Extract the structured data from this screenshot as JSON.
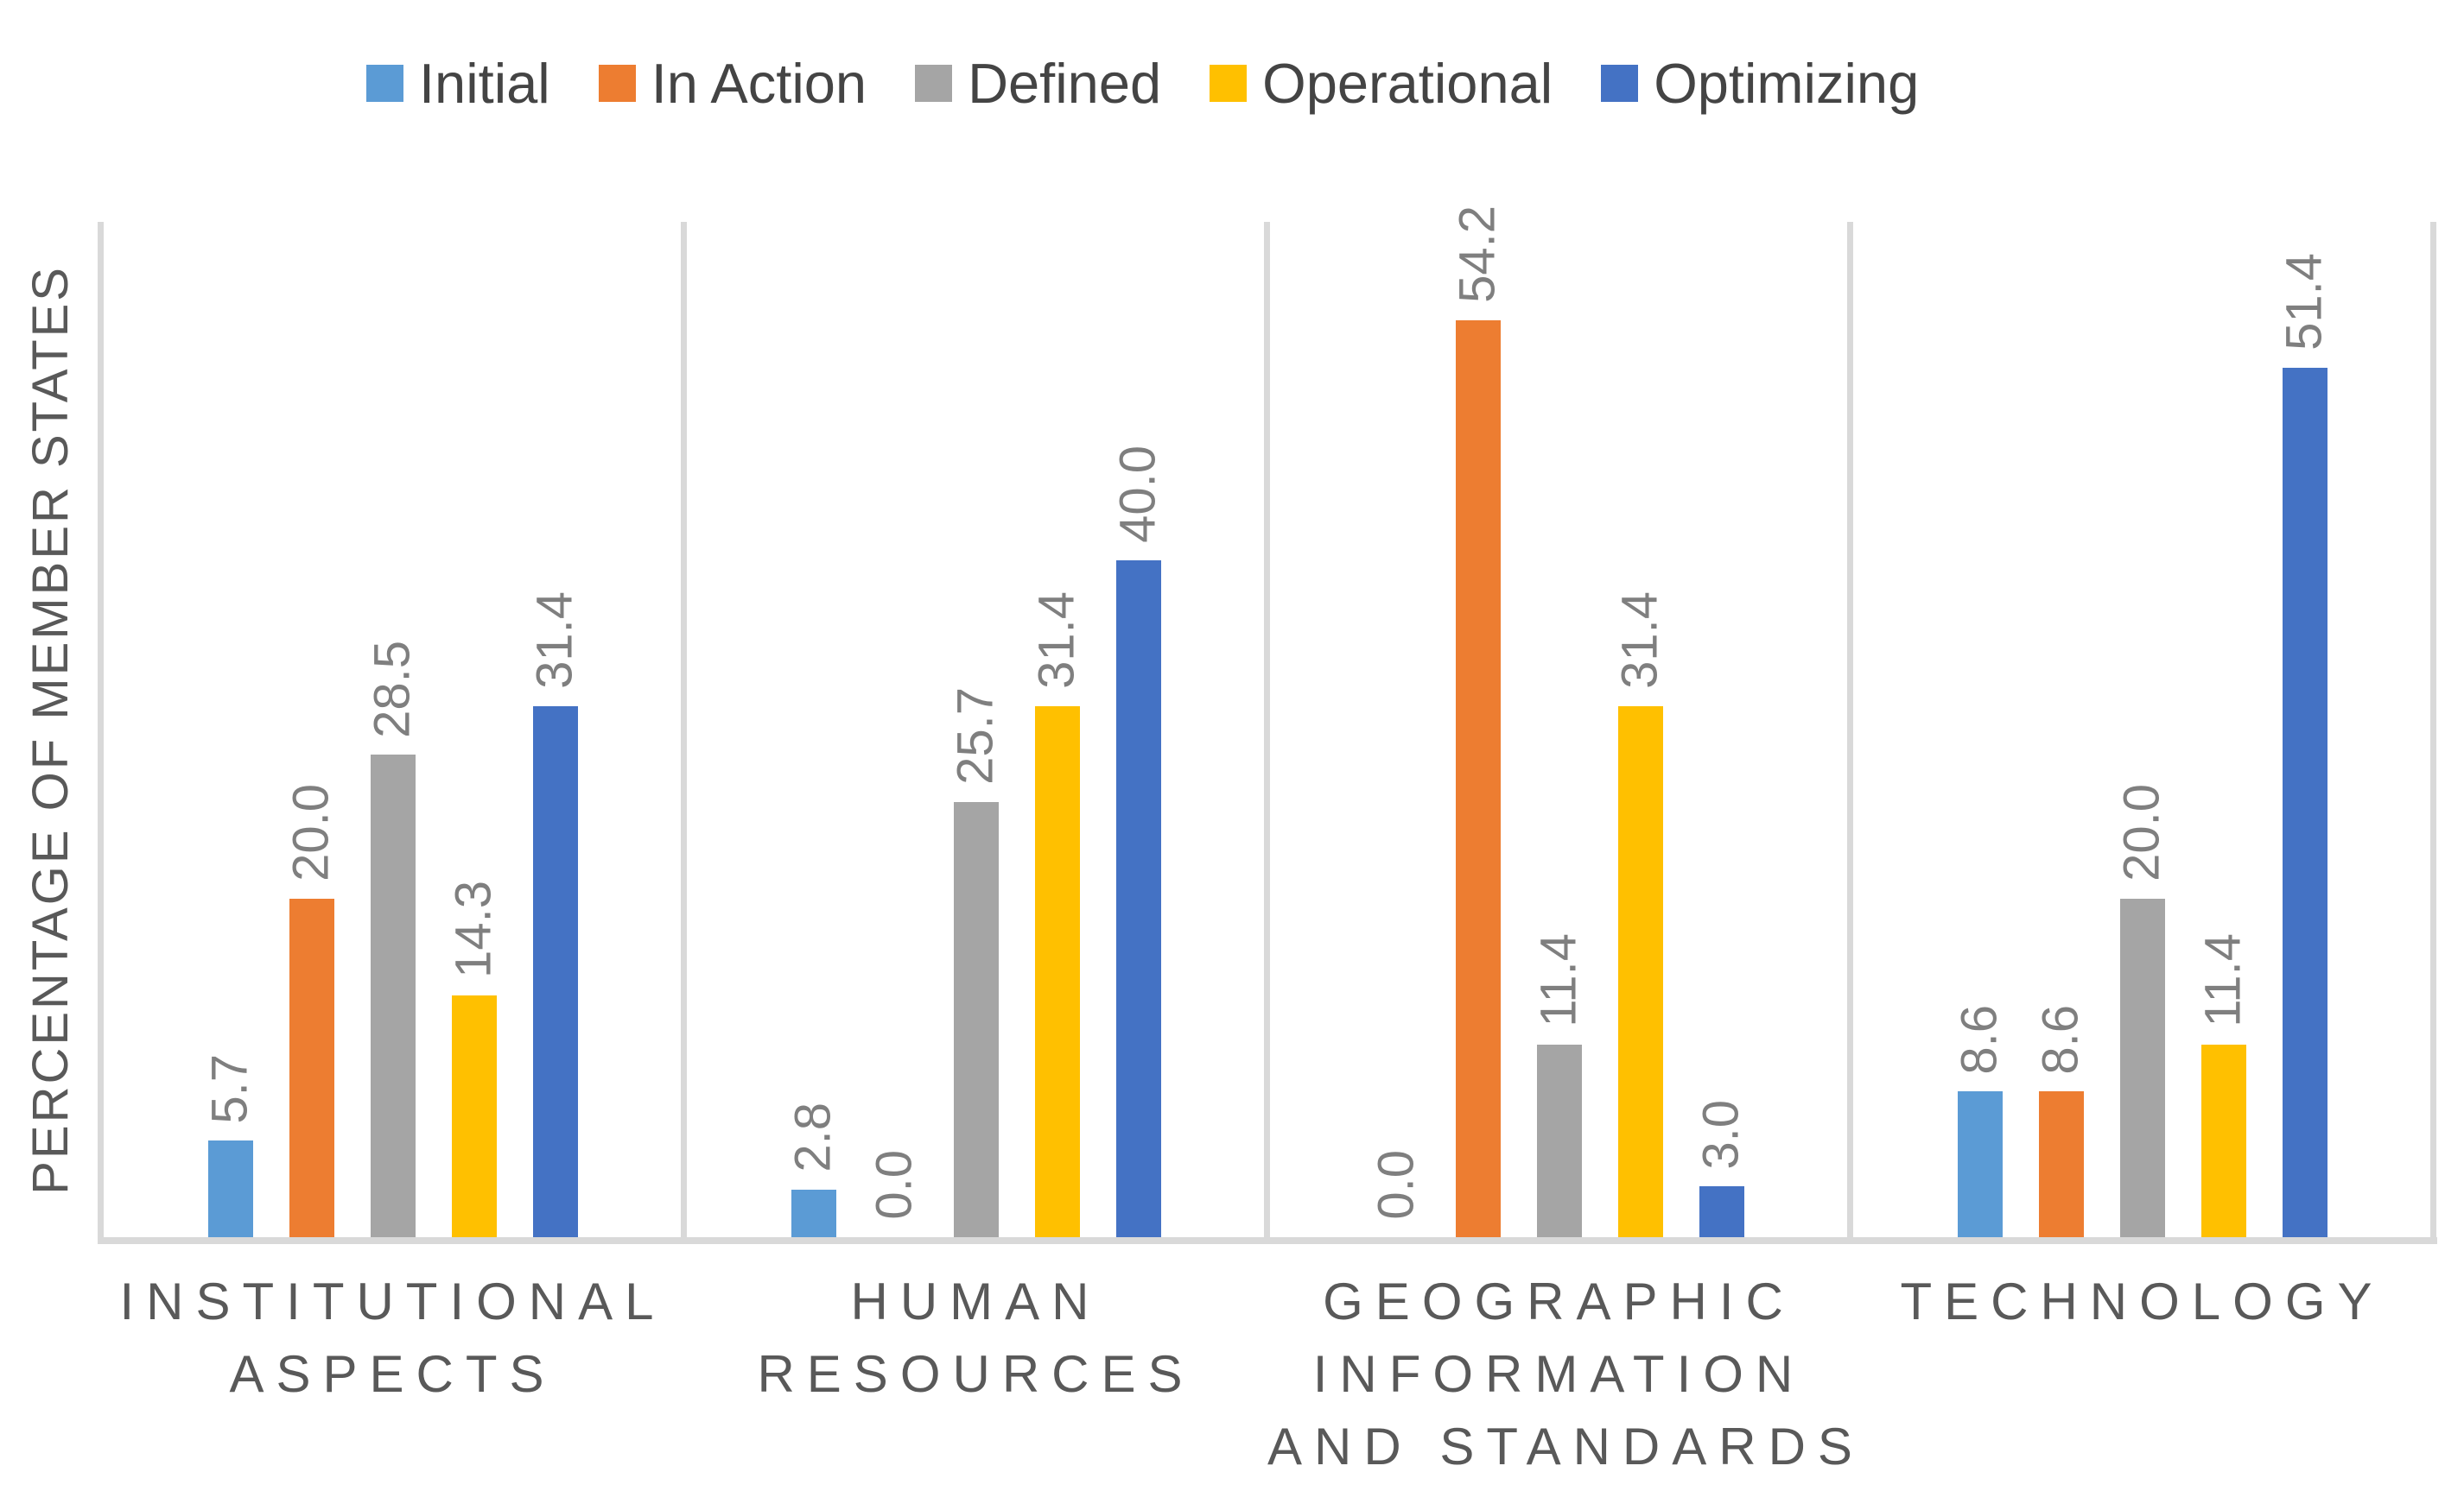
{
  "chart_data": {
    "type": "bar",
    "title": "",
    "ylabel": "PERCENTAGE OF MEMBER STATES",
    "ylim": [
      0,
      60
    ],
    "grid": "vertical-category-separators",
    "legend_position": "top",
    "value_labels": "rotated-90-above-bars",
    "value_label_decimals": 1,
    "categories": [
      "INSTITUTIONAL ASPECTS",
      "HUMAN RESOURCES",
      "GEOGRAPHIC INFORMATION AND STANDARDS",
      "TECHNOLOGY"
    ],
    "category_label_lines": [
      [
        "INSTITUTIONAL",
        "ASPECTS"
      ],
      [
        "HUMAN",
        "RESOURCES"
      ],
      [
        "GEOGRAPHIC",
        "INFORMATION",
        "AND STANDARDS"
      ],
      [
        "TECHNOLOGY"
      ]
    ],
    "series": [
      {
        "name": "Initial",
        "color": "#5B9BD5",
        "values": [
          5.7,
          2.8,
          0.0,
          8.6
        ]
      },
      {
        "name": "In Action",
        "color": "#ED7D31",
        "values": [
          20.0,
          0.0,
          54.2,
          8.6
        ]
      },
      {
        "name": "Defined",
        "color": "#A5A5A5",
        "values": [
          28.5,
          25.7,
          11.4,
          20.0
        ]
      },
      {
        "name": "Operational",
        "color": "#FFC000",
        "values": [
          14.3,
          31.4,
          31.4,
          11.4
        ]
      },
      {
        "name": "Optimizing",
        "color": "#4472C4",
        "values": [
          31.4,
          40.0,
          3.0,
          51.4
        ]
      }
    ],
    "axis_color": "#D9D9D9",
    "value_label_color": "#7F7F7F",
    "text_color": "#595959"
  }
}
